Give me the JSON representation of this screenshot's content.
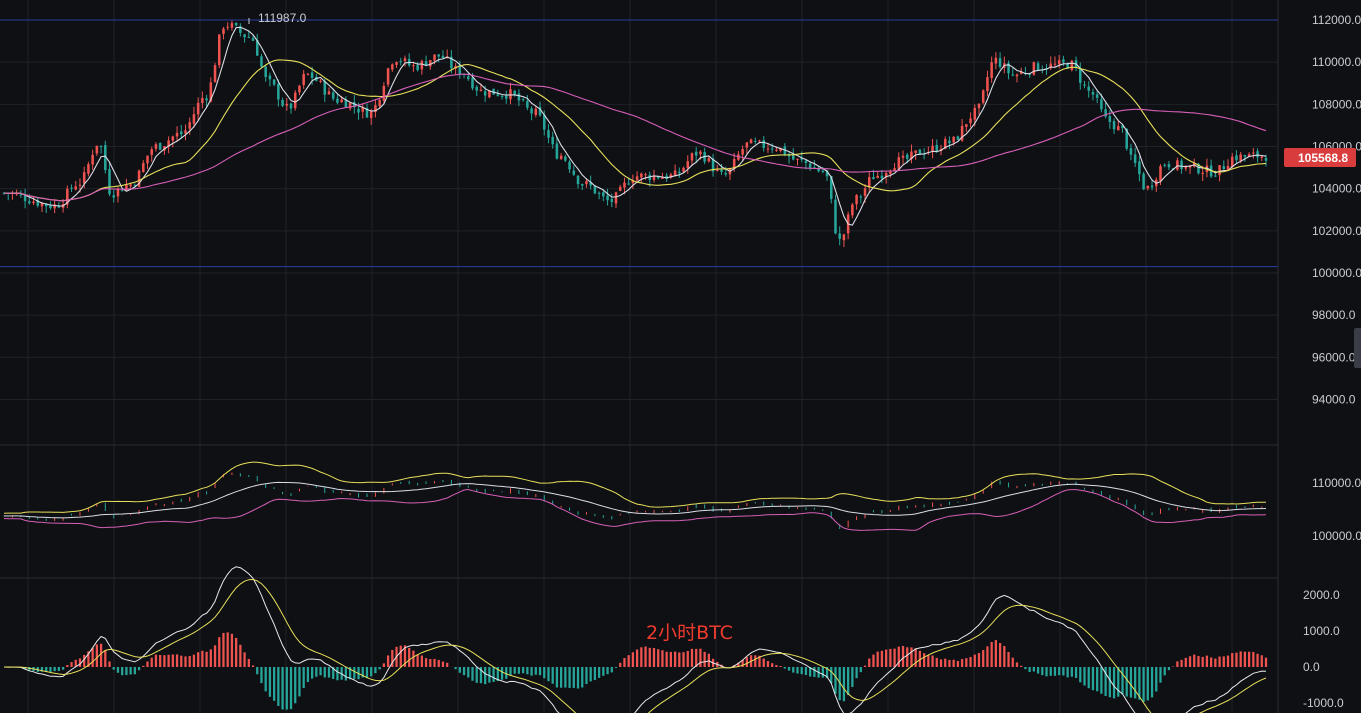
{
  "chart_data": [
    {
      "panel": "main",
      "type": "candlestick",
      "y_range": [
        92000,
        114000
      ],
      "y_ticks": [
        "112000.0",
        "110000.0",
        "108000.0",
        "106000.0",
        "104000.0",
        "102000.0",
        "100000.0",
        "98000.0",
        "96000.0",
        "94000.0"
      ],
      "high_label": "111987.0",
      "current_price": "105568.8",
      "horizontal_levels": [
        112000,
        100300
      ],
      "close_anchors": [
        [
          0,
          103800
        ],
        [
          0.04,
          103200
        ],
        [
          0.06,
          104300
        ],
        [
          0.075,
          106200
        ],
        [
          0.085,
          103800
        ],
        [
          0.1,
          104200
        ],
        [
          0.12,
          106000
        ],
        [
          0.14,
          106600
        ],
        [
          0.16,
          108400
        ],
        [
          0.175,
          111800
        ],
        [
          0.195,
          111200
        ],
        [
          0.21,
          109000
        ],
        [
          0.225,
          107800
        ],
        [
          0.24,
          109400
        ],
        [
          0.265,
          108200
        ],
        [
          0.29,
          107600
        ],
        [
          0.31,
          110200
        ],
        [
          0.325,
          109800
        ],
        [
          0.345,
          110300
        ],
        [
          0.36,
          109600
        ],
        [
          0.38,
          108600
        ],
        [
          0.4,
          108500
        ],
        [
          0.42,
          107600
        ],
        [
          0.44,
          105600
        ],
        [
          0.46,
          104200
        ],
        [
          0.48,
          103400
        ],
        [
          0.5,
          104600
        ],
        [
          0.53,
          104600
        ],
        [
          0.55,
          105700
        ],
        [
          0.57,
          104600
        ],
        [
          0.59,
          106100
        ],
        [
          0.61,
          106000
        ],
        [
          0.63,
          105300
        ],
        [
          0.65,
          104800
        ],
        [
          0.662,
          101500
        ],
        [
          0.675,
          103500
        ],
        [
          0.69,
          104600
        ],
        [
          0.71,
          105300
        ],
        [
          0.73,
          105800
        ],
        [
          0.75,
          106200
        ],
        [
          0.77,
          107600
        ],
        [
          0.785,
          110100
        ],
        [
          0.8,
          109400
        ],
        [
          0.82,
          109800
        ],
        [
          0.845,
          109900
        ],
        [
          0.86,
          108600
        ],
        [
          0.875,
          107200
        ],
        [
          0.885,
          106800
        ],
        [
          0.895,
          105200
        ],
        [
          0.905,
          104000
        ],
        [
          0.92,
          105200
        ],
        [
          0.94,
          105000
        ],
        [
          0.96,
          104800
        ],
        [
          0.975,
          105500
        ],
        [
          1.0,
          105568.8
        ]
      ],
      "ma_periods": [
        5,
        20,
        60
      ],
      "ma_colors": [
        "#d9dde6",
        "#e8e05a",
        "#d65fb8"
      ]
    },
    {
      "panel": "bollinger",
      "type": "candlestick-bands",
      "y_range": [
        96000,
        116000
      ],
      "y_ticks": [
        "110000.0",
        "100000.0"
      ],
      "band_colors": [
        "#e8e05a",
        "#d9dde6",
        "#d65fb8"
      ]
    },
    {
      "panel": "macd",
      "type": "histogram-lines",
      "y_range": [
        -1100,
        2100
      ],
      "y_ticks": [
        "2000.0",
        "1000.0",
        "0.0",
        "-1000.0"
      ],
      "annotation": "2小时BTC",
      "colors": {
        "up": "#ef5350",
        "down": "#26a69a",
        "dif": "#e6e8ec",
        "dea": "#e8e05a",
        "annotation": "#ef3b2d"
      }
    }
  ],
  "price_tag_color": "#d93c3c",
  "up_color": "#ef5350",
  "down_color": "#26a69a",
  "level_color": "#2b3d9e"
}
